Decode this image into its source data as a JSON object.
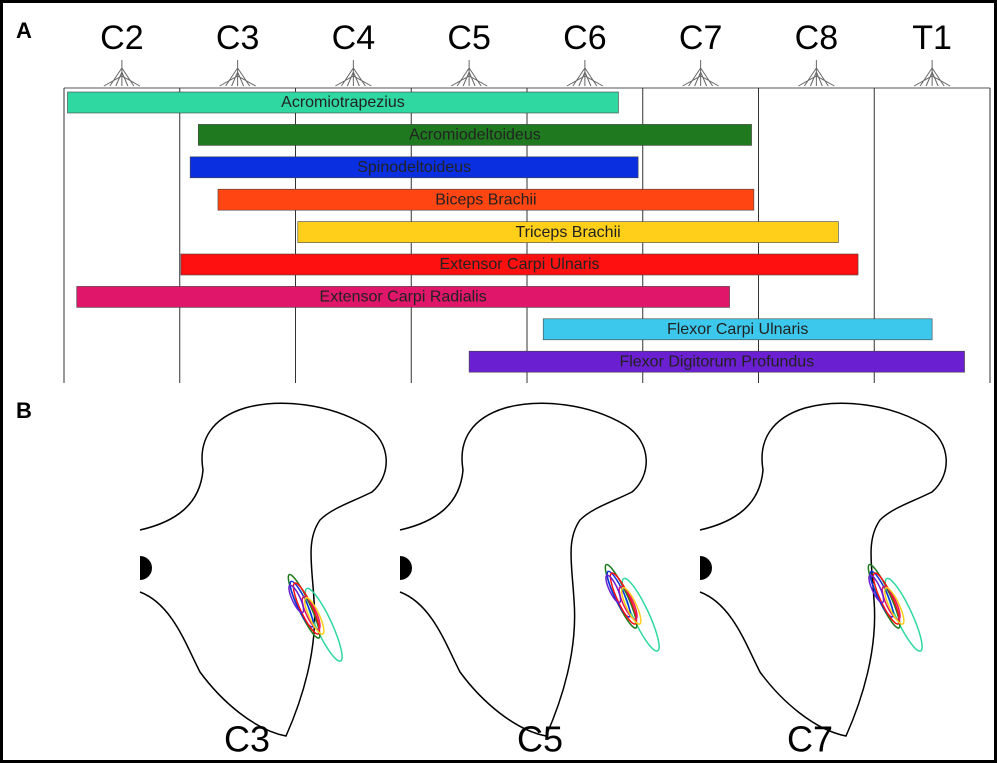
{
  "chart_data": {
    "type": "range",
    "panel_label": "A",
    "categories": [
      "C2",
      "C3",
      "C4",
      "C5",
      "C6",
      "C7",
      "C8",
      "T1"
    ],
    "xlim": [
      0,
      8
    ],
    "bars": [
      {
        "name": "Acromiotrapezius",
        "color": "#2ed8a0",
        "start": 0.03,
        "end": 4.79
      },
      {
        "name": "Acromiodeltoideus",
        "color": "#1f7a1f",
        "start": 1.16,
        "end": 5.94
      },
      {
        "name": "Spinodeltoideus",
        "color": "#0a2fe0",
        "start": 1.09,
        "end": 4.96
      },
      {
        "name": "Biceps Brachii",
        "color": "#ff4512",
        "start": 1.33,
        "end": 5.96
      },
      {
        "name": "Triceps Brachii",
        "color": "#ffcf1a",
        "start": 2.02,
        "end": 6.69
      },
      {
        "name": "Extensor Carpi Ulnaris",
        "color": "#ff1010",
        "start": 1.01,
        "end": 6.86
      },
      {
        "name": "Extensor Carpi Radialis",
        "color": "#e0166a",
        "start": 0.11,
        "end": 5.75
      },
      {
        "name": "Flexor Carpi Ulnaris",
        "color": "#3cc8ec",
        "start": 4.14,
        "end": 7.5
      },
      {
        "name": "Flexor Digitorum Profundus",
        "color": "#6a1fd0",
        "start": 3.5,
        "end": 7.78
      }
    ]
  },
  "panel_b": {
    "label": "B",
    "sections": [
      "C3",
      "C5",
      "C7"
    ]
  }
}
